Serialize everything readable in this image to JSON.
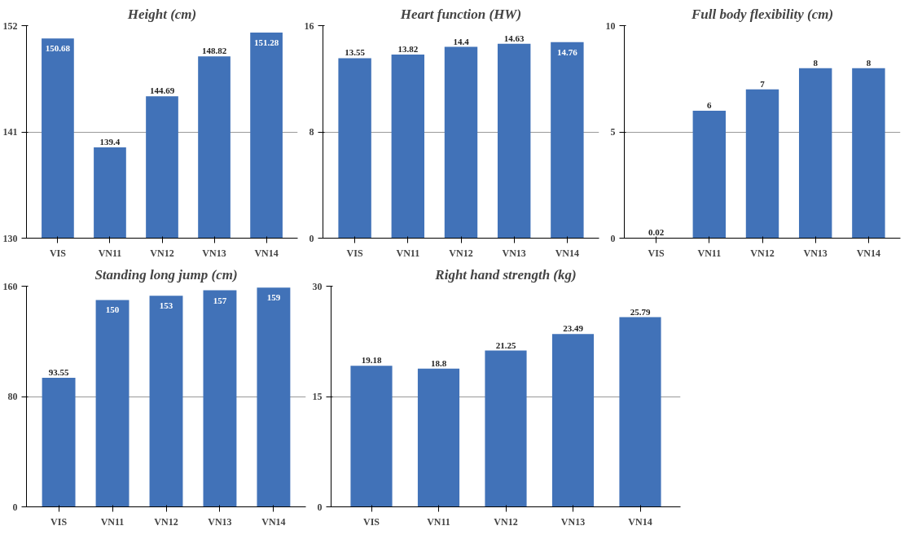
{
  "chart_data": [
    {
      "type": "bar",
      "title": "Height (cm)",
      "categories": [
        "VIS",
        "VN11",
        "VN12",
        "VN13",
        "VN14"
      ],
      "values": [
        150.68,
        139.4,
        144.69,
        148.82,
        151.28
      ],
      "color": "#4172b8",
      "ylim": [
        130,
        152
      ],
      "yticks": [
        130,
        141,
        152
      ],
      "grid": "y",
      "data_labels": true
    },
    {
      "type": "bar",
      "title": "Heart function (HW)",
      "categories": [
        "VIS",
        "VN11",
        "VN12",
        "VN13",
        "VN14"
      ],
      "values": [
        13.55,
        13.82,
        14.4,
        14.63,
        14.76
      ],
      "color": "#4172b8",
      "ylim": [
        0,
        16
      ],
      "yticks": [
        0,
        8,
        16
      ],
      "grid": "y",
      "data_labels": true
    },
    {
      "type": "bar",
      "title": "Full body flexibility (cm)",
      "categories": [
        "VIS",
        "VN11",
        "VN12",
        "VN13",
        "VN14"
      ],
      "values": [
        0.02,
        6,
        7,
        8,
        8
      ],
      "color": "#4172b8",
      "ylim": [
        0,
        10
      ],
      "yticks": [
        0,
        5,
        10
      ],
      "grid": "y",
      "data_labels": true
    },
    {
      "type": "bar",
      "title": "Standing long jump (cm)",
      "categories": [
        "VIS",
        "VN11",
        "VN12",
        "VN13",
        "VN14"
      ],
      "values": [
        93.55,
        150,
        153,
        157,
        159
      ],
      "color": "#4172b8",
      "ylim": [
        0,
        160
      ],
      "yticks": [
        0,
        80,
        160
      ],
      "grid": "y",
      "data_labels": true
    },
    {
      "type": "bar",
      "title": "Right hand strength (kg)",
      "categories": [
        "VIS",
        "VN11",
        "VN12",
        "VN13",
        "VN14"
      ],
      "values": [
        19.18,
        18.8,
        21.25,
        23.49,
        25.79
      ],
      "color": "#4172b8",
      "ylim": [
        0,
        30
      ],
      "yticks": [
        0,
        15,
        30
      ],
      "grid": "y",
      "data_labels": true
    }
  ]
}
